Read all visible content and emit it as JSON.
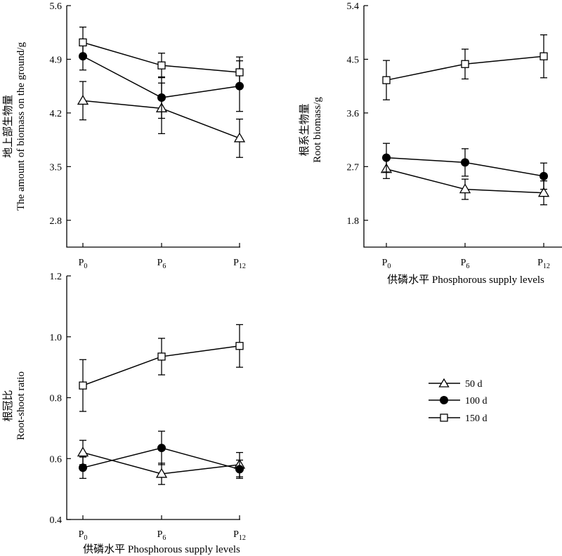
{
  "legend": [
    {
      "label": "50 d",
      "marker": "triangle"
    },
    {
      "label": "100 d",
      "marker": "circle"
    },
    {
      "label": "150 d",
      "marker": "square"
    }
  ],
  "chart_data": [
    {
      "type": "line",
      "panel": "top-left",
      "ylabel_cn": "地上部生物量",
      "ylabel_en": "The amount of biomass on the ground/g",
      "xlabel": "",
      "categories": [
        "P0",
        "P6",
        "P12"
      ],
      "ylim": [
        2.45,
        5.6
      ],
      "yticks": [
        "2.8",
        "3.5",
        "4.2",
        "4.9",
        "5.6"
      ],
      "series": [
        {
          "name": "50 d",
          "marker": "triangle",
          "values": [
            4.36,
            4.26,
            3.87
          ],
          "err": [
            0.25,
            0.33,
            0.25
          ]
        },
        {
          "name": "100 d",
          "marker": "circle",
          "values": [
            4.94,
            4.4,
            4.55
          ],
          "err": [
            0.18,
            0.27,
            0.33
          ]
        },
        {
          "name": "150 d",
          "marker": "square",
          "values": [
            5.12,
            4.82,
            4.73
          ],
          "err": [
            0.2,
            0.16,
            0.2
          ]
        }
      ]
    },
    {
      "type": "line",
      "panel": "top-right",
      "ylabel_cn": "根系生物量",
      "ylabel_en": "Root biomass/g",
      "xlabel": "供磷水平 Phosphorous supply levels",
      "categories": [
        "P0",
        "P6",
        "P12"
      ],
      "ylim": [
        1.35,
        5.4
      ],
      "yticks": [
        "1.8",
        "2.7",
        "3.6",
        "4.5",
        "5.4"
      ],
      "series": [
        {
          "name": "50 d",
          "marker": "triangle",
          "values": [
            2.66,
            2.32,
            2.26
          ],
          "err": [
            0.16,
            0.17,
            0.2
          ]
        },
        {
          "name": "100 d",
          "marker": "circle",
          "values": [
            2.85,
            2.77,
            2.54
          ],
          "err": [
            0.24,
            0.23,
            0.22
          ]
        },
        {
          "name": "150 d",
          "marker": "square",
          "values": [
            4.15,
            4.42,
            4.55
          ],
          "err": [
            0.33,
            0.25,
            0.36
          ]
        }
      ]
    },
    {
      "type": "line",
      "panel": "bottom-left",
      "ylabel_cn": "根冠比",
      "ylabel_en": "Root-shoot ratio",
      "xlabel": "供磷水平 Phosphorous supply levels",
      "categories": [
        "P0",
        "P6",
        "P12"
      ],
      "ylim": [
        0.4,
        1.2
      ],
      "yticks": [
        "0.4",
        "0.6",
        "0.8",
        "1.0",
        "1.2"
      ],
      "series": [
        {
          "name": "50 d",
          "marker": "triangle",
          "values": [
            0.62,
            0.55,
            0.58
          ],
          "err": [
            0.04,
            0.035,
            0.04
          ]
        },
        {
          "name": "100 d",
          "marker": "circle",
          "values": [
            0.57,
            0.635,
            0.565
          ],
          "err": [
            0.035,
            0.055,
            0.03
          ]
        },
        {
          "name": "150 d",
          "marker": "square",
          "values": [
            0.84,
            0.935,
            0.97
          ],
          "err": [
            0.085,
            0.06,
            0.07
          ]
        }
      ]
    }
  ]
}
